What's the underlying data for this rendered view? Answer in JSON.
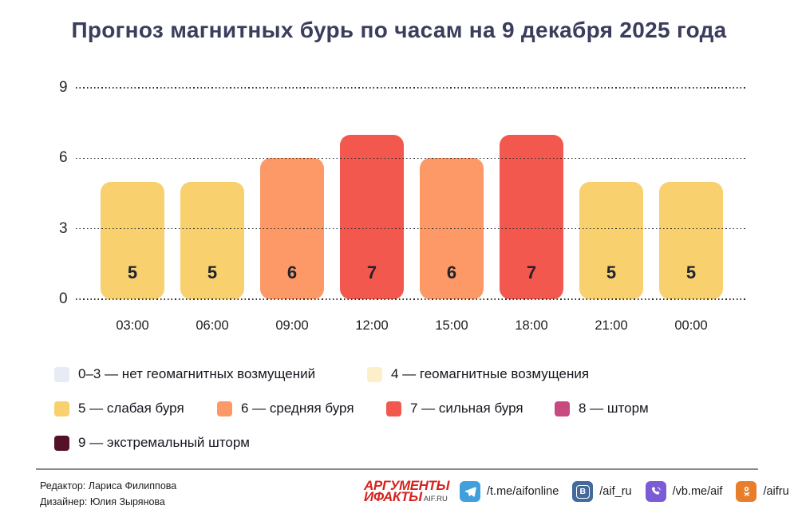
{
  "chart_data": {
    "type": "bar",
    "title": "Прогноз магнитных бурь по часам на 9 декабря 2025 года",
    "categories": [
      "03:00",
      "06:00",
      "09:00",
      "12:00",
      "15:00",
      "18:00",
      "21:00",
      "00:00"
    ],
    "values": [
      5,
      5,
      6,
      7,
      6,
      7,
      5,
      5
    ],
    "xlabel": "",
    "ylabel": "",
    "ylim": [
      0,
      9
    ],
    "yticks": [
      0,
      3,
      6,
      9
    ],
    "grid": "horizontal-dotted",
    "legend_position": "bottom",
    "value_colors": {
      "5": "#F8D06E",
      "6": "#FC9966",
      "7": "#F2584E"
    },
    "bar_label_color": "#20232E"
  },
  "legend": {
    "rows": [
      [
        {
          "color": "#E7EBF5",
          "label": "0–3 — нет геомагнитных возмущений"
        },
        {
          "color": "#FDEFC7",
          "label": "4 — геомагнитные возмущения"
        }
      ],
      [
        {
          "color": "#F8D06E",
          "label": "5 — слабая буря"
        },
        {
          "color": "#FC9966",
          "label": "6 — средняя буря"
        },
        {
          "color": "#F2584E",
          "label": "7 — сильная буря"
        },
        {
          "color": "#C8497F",
          "label": "8 — шторм"
        }
      ],
      [
        {
          "color": "#551129",
          "label": "9 — экстремальный шторм"
        }
      ]
    ]
  },
  "footer": {
    "editor": "Редактор: Лариса Филиппова",
    "designer": "Дизайнер: Юлия Зырянова",
    "logo": {
      "line1": "АРГУМЕНТЫ",
      "line2": "ИФАКТЫ",
      "suffix": "AIF.RU",
      "color": "#D6231F"
    },
    "socials": [
      {
        "icon": "telegram-icon",
        "color": "#3FA0DB",
        "handle": "/t.me/aifonline"
      },
      {
        "icon": "vk-icon",
        "color": "#44699B",
        "handle": "/aif_ru"
      },
      {
        "icon": "viber-icon",
        "color": "#7B5CD6",
        "handle": "/vb.me/aif"
      },
      {
        "icon": "ok-icon",
        "color": "#E87E2C",
        "handle": "/aifru"
      }
    ]
  }
}
